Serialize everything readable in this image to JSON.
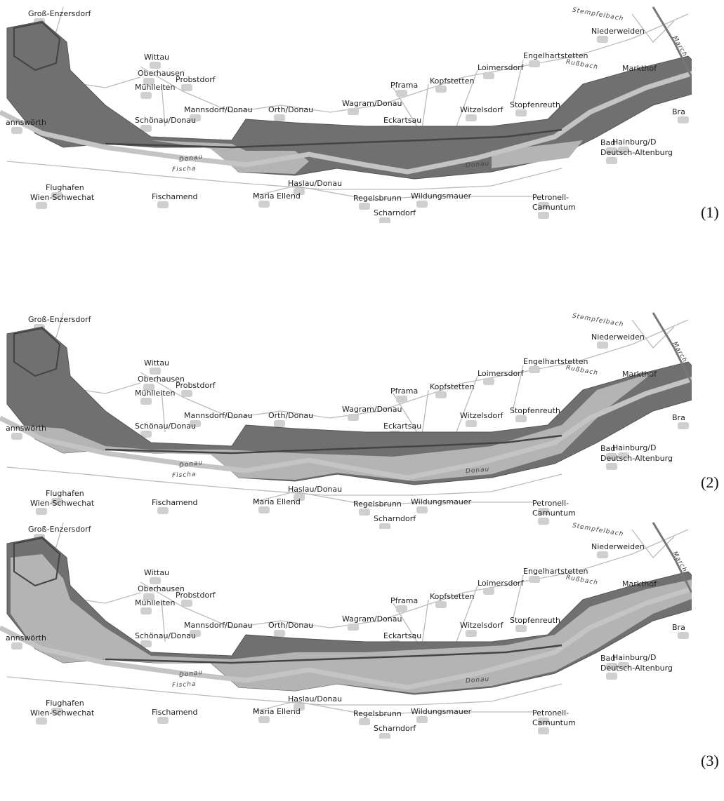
{
  "places": [
    "Groß-Enzersdorf",
    "Wittau",
    "Oberhausen",
    "Mühlleiten",
    "Probstdorf",
    "Schönau/Donau",
    "Mannsdorf/Donau",
    "Orth/Donau",
    "Wagram/Donau",
    "Pframa",
    "Kopfstetten",
    "Loimersdorf",
    "Engelhartstetten",
    "Niederweiden",
    "Markthof",
    "Witzelsdorf",
    "Stopfenreuth",
    "Eckartsau",
    "Bad",
    "Deutsch-Altenburg",
    "Hainburg/D",
    "Bra",
    "annswörth",
    "Fischamend",
    "Maria Ellend",
    "Haslau/Donau",
    "Regelsbrunn",
    "Scharndorf",
    "Wildungsmauer",
    "Petronell-",
    "Carnuntum",
    "Flughafen",
    "Wien-Schwechat"
  ],
  "rivers": [
    "Donau",
    "Donau",
    "Fischa",
    "Stempfelbach",
    "Rußbach",
    "March"
  ],
  "panels": [
    {
      "label": "(1)"
    },
    {
      "label": "(2)"
    },
    {
      "label": "(3)"
    }
  ]
}
